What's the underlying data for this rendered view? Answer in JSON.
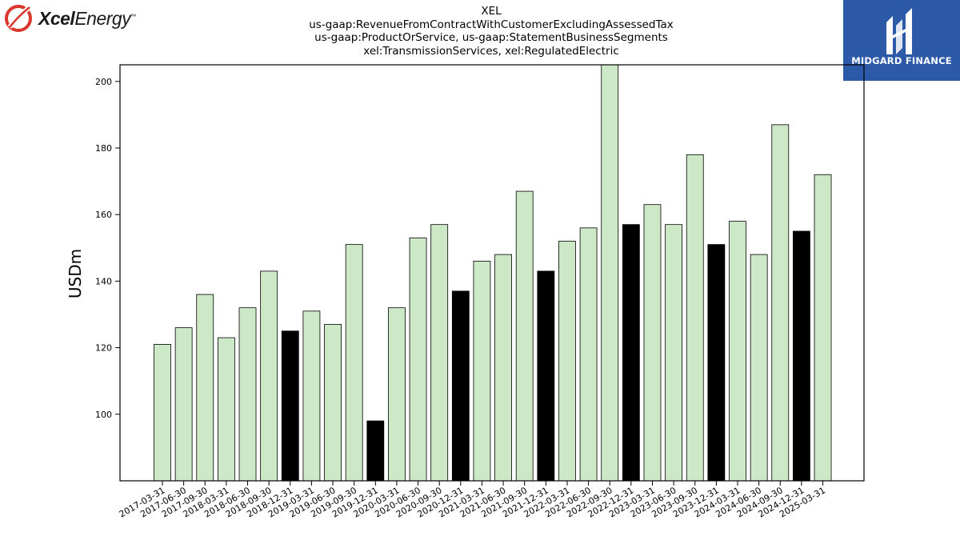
{
  "header": {
    "left_logo": {
      "bold": "Xcel",
      "regular": "Energy",
      "tm": "™"
    },
    "right_logo": {
      "label": "MIDGARD FINANCE"
    }
  },
  "chart_data": {
    "type": "bar",
    "title_lines": [
      "XEL",
      "us-gaap:RevenueFromContractWithCustomerExcludingAssessedTax",
      "us-gaap:ProductOrService, us-gaap:StatementBusinessSegments",
      "xel:TransmissionServices, xel:RegulatedElectric"
    ],
    "xlabel": "",
    "ylabel": "USDm",
    "ylim": [
      80,
      205
    ],
    "yticks": [
      100,
      120,
      140,
      160,
      180,
      200
    ],
    "grid": false,
    "colors": {
      "quarter": "#cde8c6",
      "year_end": "#000000",
      "edge": "#000000"
    },
    "categories": [
      "2017-03-31",
      "2017-06-30",
      "2017-09-30",
      "2018-03-31",
      "2018-06-30",
      "2018-09-30",
      "2018-12-31",
      "2019-03-31",
      "2019-06-30",
      "2019-09-30",
      "2019-12-31",
      "2020-03-31",
      "2020-06-30",
      "2020-09-30",
      "2020-12-31",
      "2021-03-31",
      "2021-06-30",
      "2021-09-30",
      "2021-12-31",
      "2022-03-31",
      "2022-06-30",
      "2022-09-30",
      "2022-12-31",
      "2023-03-31",
      "2023-06-30",
      "2023-09-30",
      "2023-12-31",
      "2024-03-31",
      "2024-06-30",
      "2024-09-30",
      "2024-12-31",
      "2025-03-31"
    ],
    "values": [
      121,
      126,
      136,
      123,
      132,
      143,
      125,
      131,
      127,
      151,
      98,
      132,
      153,
      157,
      137,
      146,
      148,
      167,
      143,
      152,
      156,
      206,
      157,
      163,
      157,
      178,
      151,
      158,
      148,
      187,
      155,
      172
    ],
    "highlight": [
      false,
      false,
      false,
      false,
      false,
      false,
      true,
      false,
      false,
      false,
      true,
      false,
      false,
      false,
      true,
      false,
      false,
      false,
      true,
      false,
      false,
      false,
      true,
      false,
      false,
      false,
      true,
      false,
      false,
      false,
      true,
      false
    ]
  }
}
